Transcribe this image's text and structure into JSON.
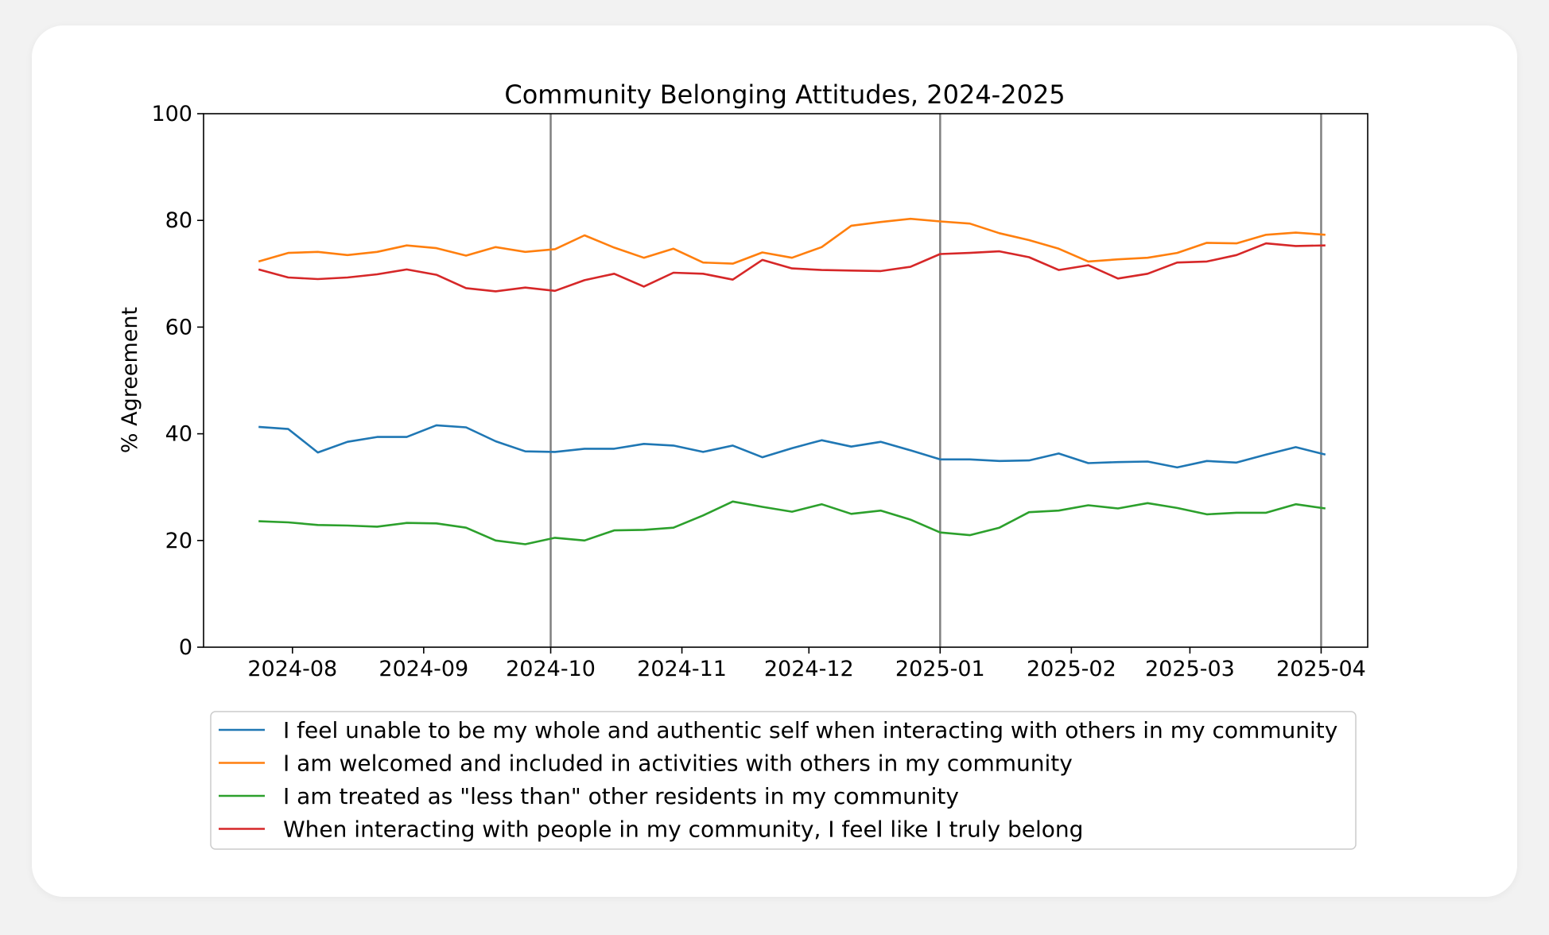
{
  "chart_data": {
    "type": "line",
    "title": "Community Belonging Attitudes, 2024-2025",
    "xlabel": "",
    "ylabel": "% Agreement",
    "ylim": [
      0,
      100
    ],
    "xlim": [
      "2024-07-11",
      "2025-04-12"
    ],
    "yticks": [
      0,
      20,
      40,
      60,
      80,
      100
    ],
    "xticks": [
      {
        "date": "2024-08-01",
        "label": "2024-08"
      },
      {
        "date": "2024-09-01",
        "label": "2024-09"
      },
      {
        "date": "2024-10-01",
        "label": "2024-10"
      },
      {
        "date": "2024-11-01",
        "label": "2024-11"
      },
      {
        "date": "2024-12-01",
        "label": "2024-12"
      },
      {
        "date": "2025-01-01",
        "label": "2025-01"
      },
      {
        "date": "2025-02-01",
        "label": "2025-02"
      },
      {
        "date": "2025-03-01",
        "label": "2025-03"
      },
      {
        "date": "2025-04-01",
        "label": "2025-04"
      }
    ],
    "vlines": [
      "2024-10-01",
      "2025-01-01",
      "2025-04-01"
    ],
    "grid": false,
    "legend_position": "bottom-center",
    "x": [
      "2024-07-24",
      "2024-07-31",
      "2024-08-07",
      "2024-08-14",
      "2024-08-21",
      "2024-08-28",
      "2024-09-04",
      "2024-09-11",
      "2024-09-18",
      "2024-09-25",
      "2024-10-02",
      "2024-10-09",
      "2024-10-16",
      "2024-10-23",
      "2024-10-30",
      "2024-11-06",
      "2024-11-13",
      "2024-11-20",
      "2024-11-27",
      "2024-12-04",
      "2024-12-11",
      "2024-12-18",
      "2024-12-25",
      "2025-01-01",
      "2025-01-08",
      "2025-01-15",
      "2025-01-22",
      "2025-01-29",
      "2025-02-05",
      "2025-02-12",
      "2025-02-19",
      "2025-02-26",
      "2025-03-05",
      "2025-03-12",
      "2025-03-19",
      "2025-03-26",
      "2025-04-02"
    ],
    "series": [
      {
        "name": "I feel unable to be my whole and authentic self when interacting with others in my community",
        "color": "#1f77b4",
        "values": [
          41.3,
          40.9,
          36.5,
          38.5,
          39.4,
          39.4,
          41.6,
          41.2,
          38.6,
          36.7,
          36.6,
          37.2,
          37.2,
          38.1,
          37.8,
          36.6,
          37.8,
          35.6,
          37.3,
          38.8,
          37.6,
          38.5,
          36.9,
          35.2,
          35.2,
          34.9,
          35.0,
          36.3,
          34.5,
          34.7,
          34.8,
          33.7,
          34.9,
          34.6,
          36.1,
          37.5,
          36.1
        ]
      },
      {
        "name": "I am welcomed and included in activities with others in my community",
        "color": "#ff7f0e",
        "values": [
          72.3,
          73.9,
          74.1,
          73.5,
          74.1,
          75.3,
          74.8,
          73.4,
          75.0,
          74.1,
          74.6,
          77.2,
          74.9,
          73.0,
          74.7,
          72.1,
          71.9,
          74.0,
          73.0,
          75.0,
          79.0,
          79.7,
          80.3,
          79.8,
          79.4,
          77.6,
          76.3,
          74.7,
          72.3,
          72.7,
          73.0,
          73.9,
          75.8,
          75.7,
          77.3,
          77.7,
          77.3
        ]
      },
      {
        "name": "I am treated as \"less than\" other residents in my community",
        "color": "#2ca02c",
        "values": [
          23.6,
          23.4,
          22.9,
          22.8,
          22.6,
          23.3,
          23.2,
          22.4,
          20.0,
          19.3,
          20.5,
          20.0,
          21.9,
          22.0,
          22.4,
          24.7,
          27.3,
          26.3,
          25.4,
          26.8,
          25.0,
          25.6,
          23.9,
          21.5,
          21.0,
          22.4,
          25.3,
          25.6,
          26.6,
          26.0,
          27.0,
          26.1,
          24.9,
          25.2,
          25.2,
          26.8,
          26.0
        ]
      },
      {
        "name": "When interacting with people in my community, I feel like I truly belong",
        "color": "#d62728",
        "values": [
          70.8,
          69.3,
          69.0,
          69.3,
          69.9,
          70.8,
          69.8,
          67.3,
          66.7,
          67.4,
          66.8,
          68.8,
          70.0,
          67.6,
          70.2,
          70.0,
          68.9,
          72.6,
          71.0,
          70.7,
          70.6,
          70.5,
          71.3,
          73.7,
          73.9,
          74.2,
          73.1,
          70.7,
          71.6,
          69.1,
          70.0,
          72.1,
          72.3,
          73.5,
          75.7,
          75.2,
          75.3
        ]
      }
    ]
  }
}
